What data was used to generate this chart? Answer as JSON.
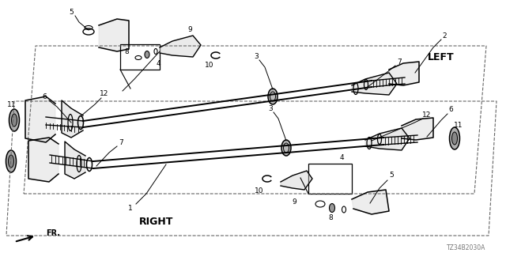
{
  "bg_color": "#ffffff",
  "diagram_code": "TZ34B2030A",
  "left_label": "LEFT",
  "right_label": "RIGHT",
  "fr_label": "FR.",
  "line_color": "#000000",
  "text_color": "#000000"
}
